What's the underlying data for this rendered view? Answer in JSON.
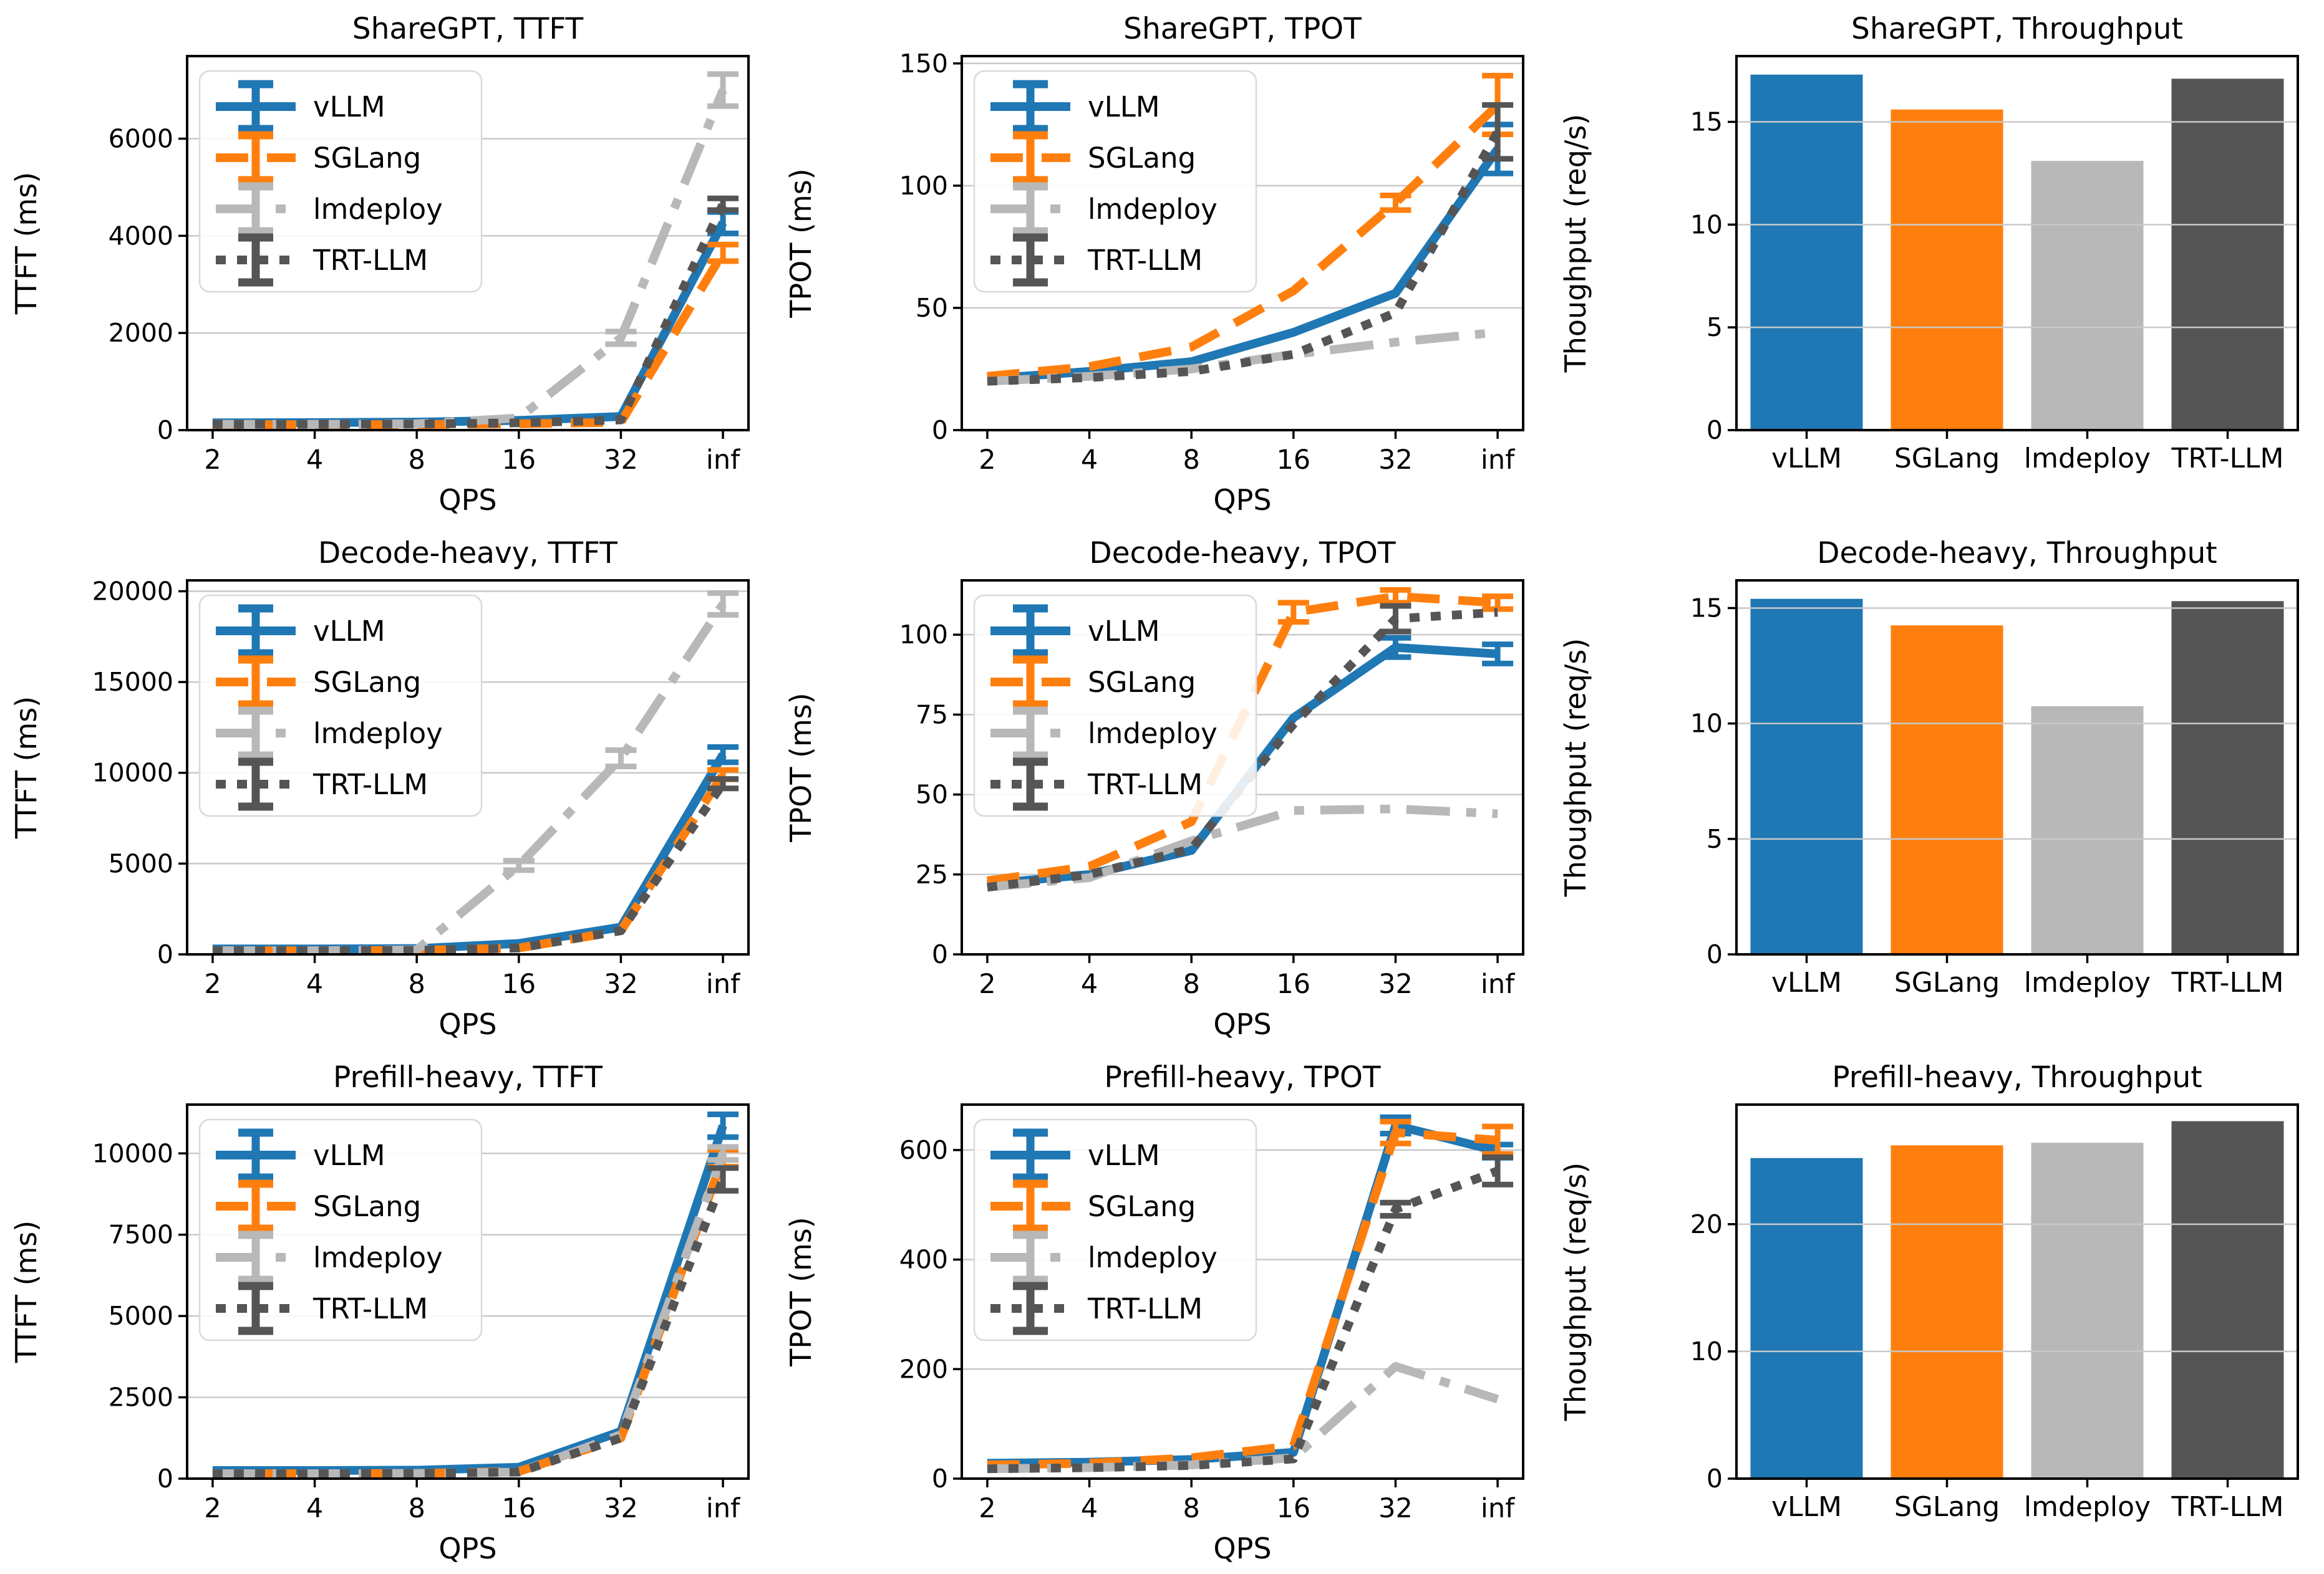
{
  "palette": {
    "vllm": "#1f77b4",
    "sglang": "#ff7f0e",
    "lmdeploy": "#b8b8b8",
    "trtllm": "#555555",
    "grid_line": "#c9c9c9",
    "spine": "#000000",
    "legend_border": "#d9d9d9"
  },
  "frameworks": [
    "vLLM",
    "SGLang",
    "lmdeploy",
    "TRT-LLM"
  ],
  "chart_data": [
    {
      "type": "line",
      "title": "ShareGPT, TTFT",
      "xlabel": "QPS",
      "ylabel": "TTFT (ms)",
      "x_ticklabels": [
        "2",
        "4",
        "8",
        "16",
        "32",
        "inf"
      ],
      "yticks": [
        0,
        2000,
        4000,
        6000
      ],
      "ylim": [
        0,
        7700
      ],
      "grid": true,
      "legend": true,
      "legend_position": "upper-left",
      "series": [
        {
          "name": "vLLM",
          "color": "#1f77b4",
          "style": "solid",
          "values": [
            150,
            155,
            165,
            200,
            280,
            4270
          ],
          "err": [
            0,
            0,
            0,
            0,
            0,
            220
          ]
        },
        {
          "name": "SGLang",
          "color": "#ff7f0e",
          "style": "dashed",
          "values": [
            110,
            110,
            115,
            130,
            160,
            3650
          ],
          "err": [
            0,
            0,
            0,
            0,
            0,
            170
          ]
        },
        {
          "name": "lmdeploy",
          "color": "#b8b8b8",
          "style": "dashdot",
          "values": [
            120,
            120,
            130,
            250,
            1900,
            7000
          ],
          "err": [
            0,
            0,
            0,
            0,
            130,
            330
          ]
        },
        {
          "name": "TRT-LLM",
          "color": "#555555",
          "style": "dotted",
          "values": [
            120,
            120,
            125,
            150,
            210,
            4650
          ],
          "err": [
            0,
            0,
            0,
            0,
            0,
            120
          ]
        }
      ]
    },
    {
      "type": "line",
      "title": "ShareGPT, TPOT",
      "xlabel": "QPS",
      "ylabel": "TPOT (ms)",
      "x_ticklabels": [
        "2",
        "4",
        "8",
        "16",
        "32",
        "inf"
      ],
      "yticks": [
        0,
        50,
        100,
        150
      ],
      "ylim": [
        0,
        153
      ],
      "grid": true,
      "legend": true,
      "legend_position": "upper-left",
      "series": [
        {
          "name": "vLLM",
          "color": "#1f77b4",
          "style": "solid",
          "values": [
            21,
            24,
            28,
            40,
            56,
            115
          ],
          "err": [
            0,
            0,
            0,
            0,
            0,
            10
          ]
        },
        {
          "name": "SGLang",
          "color": "#ff7f0e",
          "style": "dashed",
          "values": [
            22,
            26,
            34,
            57,
            93,
            133
          ],
          "err": [
            0,
            0,
            0,
            0,
            3,
            12
          ]
        },
        {
          "name": "lmdeploy",
          "color": "#b8b8b8",
          "style": "dashdot",
          "values": [
            20,
            22,
            25,
            31,
            36,
            40
          ],
          "err": [
            0,
            0,
            0,
            0,
            0,
            0
          ]
        },
        {
          "name": "TRT-LLM",
          "color": "#555555",
          "style": "dotted",
          "values": [
            20,
            21.5,
            24,
            31,
            48,
            122
          ],
          "err": [
            0,
            0,
            0,
            0,
            0,
            11
          ]
        }
      ]
    },
    {
      "type": "bar",
      "title": "ShareGPT, Throughput",
      "xlabel": "",
      "ylabel": "Thoughput (req/s)",
      "categories": [
        "vLLM",
        "SGLang",
        "lmdeploy",
        "TRT-LLM"
      ],
      "values": [
        17.3,
        15.6,
        13.1,
        17.1
      ],
      "bar_colors": [
        "#1f77b4",
        "#ff7f0e",
        "#b8b8b8",
        "#555555"
      ],
      "yticks": [
        0,
        5,
        10,
        15
      ],
      "ylim": [
        0,
        18.2
      ],
      "grid": true,
      "legend": false
    },
    {
      "type": "line",
      "title": "Decode-heavy, TTFT",
      "xlabel": "QPS",
      "ylabel": "TTFT (ms)",
      "x_ticklabels": [
        "2",
        "4",
        "8",
        "16",
        "32",
        "inf"
      ],
      "yticks": [
        0,
        5000,
        10000,
        15000,
        20000
      ],
      "ylim": [
        0,
        20600
      ],
      "grid": true,
      "legend": true,
      "legend_position": "upper-left",
      "series": [
        {
          "name": "vLLM",
          "color": "#1f77b4",
          "style": "solid",
          "values": [
            300,
            300,
            320,
            600,
            1500,
            11000
          ],
          "err": [
            0,
            0,
            0,
            0,
            0,
            420
          ]
        },
        {
          "name": "SGLang",
          "color": "#ff7f0e",
          "style": "dashed",
          "values": [
            200,
            200,
            220,
            350,
            1300,
            9900
          ],
          "err": [
            0,
            0,
            0,
            0,
            0,
            260
          ]
        },
        {
          "name": "lmdeploy",
          "color": "#b8b8b8",
          "style": "dashdot",
          "values": [
            200,
            200,
            250,
            4900,
            10800,
            19300
          ],
          "err": [
            0,
            0,
            0,
            260,
            450,
            600
          ]
        },
        {
          "name": "TRT-LLM",
          "color": "#555555",
          "style": "dotted",
          "values": [
            200,
            200,
            220,
            350,
            1300,
            9400
          ],
          "err": [
            0,
            0,
            0,
            0,
            0,
            260
          ]
        }
      ]
    },
    {
      "type": "line",
      "title": "Decode-heavy, TPOT",
      "xlabel": "QPS",
      "ylabel": "TPOT (ms)",
      "x_ticklabels": [
        "2",
        "4",
        "8",
        "16",
        "32",
        "inf"
      ],
      "yticks": [
        0,
        25,
        50,
        75,
        100
      ],
      "ylim": [
        0,
        117
      ],
      "grid": true,
      "legend": true,
      "legend_position": "upper-left",
      "series": [
        {
          "name": "vLLM",
          "color": "#1f77b4",
          "style": "solid",
          "values": [
            22,
            25,
            32.5,
            74,
            96,
            94
          ],
          "err": [
            0,
            0,
            0,
            0,
            3,
            3
          ]
        },
        {
          "name": "SGLang",
          "color": "#ff7f0e",
          "style": "dashed",
          "values": [
            23,
            27.5,
            41.5,
            107,
            112,
            110
          ],
          "err": [
            0,
            0,
            0,
            3,
            2,
            2
          ]
        },
        {
          "name": "lmdeploy",
          "color": "#b8b8b8",
          "style": "dashdot",
          "values": [
            21,
            24,
            35.5,
            45,
            45.5,
            44
          ],
          "err": [
            0,
            0,
            0,
            0,
            0,
            0
          ]
        },
        {
          "name": "TRT-LLM",
          "color": "#555555",
          "style": "dotted",
          "values": [
            21,
            25,
            33,
            72,
            105,
            107
          ],
          "err": [
            0,
            0,
            0,
            0,
            4,
            0
          ]
        }
      ]
    },
    {
      "type": "bar",
      "title": "Decode-heavy, Throughput",
      "xlabel": "",
      "ylabel": "Thoughput (req/s)",
      "categories": [
        "vLLM",
        "SGLang",
        "lmdeploy",
        "TRT-LLM"
      ],
      "values": [
        15.4,
        14.25,
        10.75,
        15.3
      ],
      "bar_colors": [
        "#1f77b4",
        "#ff7f0e",
        "#b8b8b8",
        "#555555"
      ],
      "yticks": [
        0,
        5,
        10,
        15
      ],
      "ylim": [
        0,
        16.2
      ],
      "grid": true,
      "legend": false
    },
    {
      "type": "line",
      "title": "Prefill-heavy, TTFT",
      "xlabel": "QPS",
      "ylabel": "TTFT (ms)",
      "x_ticklabels": [
        "2",
        "4",
        "8",
        "16",
        "32",
        "inf"
      ],
      "yticks": [
        0,
        2500,
        5000,
        7500,
        10000
      ],
      "ylim": [
        0,
        11500
      ],
      "grid": true,
      "legend": true,
      "legend_position": "upper-left",
      "series": [
        {
          "name": "vLLM",
          "color": "#1f77b4",
          "style": "solid",
          "values": [
            250,
            250,
            260,
            350,
            1450,
            10850
          ],
          "err": [
            0,
            0,
            0,
            0,
            0,
            350
          ]
        },
        {
          "name": "SGLang",
          "color": "#ff7f0e",
          "style": "dashed",
          "values": [
            150,
            150,
            160,
            220,
            1250,
            9850
          ],
          "err": [
            0,
            0,
            0,
            0,
            0,
            260
          ]
        },
        {
          "name": "lmdeploy",
          "color": "#b8b8b8",
          "style": "dashdot",
          "values": [
            150,
            150,
            160,
            200,
            1350,
            10000
          ],
          "err": [
            0,
            0,
            0,
            0,
            0,
            200
          ]
        },
        {
          "name": "TRT-LLM",
          "color": "#555555",
          "style": "dotted",
          "values": [
            150,
            150,
            160,
            200,
            1250,
            9200
          ],
          "err": [
            0,
            0,
            0,
            0,
            0,
            350
          ]
        }
      ]
    },
    {
      "type": "line",
      "title": "Prefill-heavy, TPOT",
      "xlabel": "QPS",
      "ylabel": "TPOT (ms)",
      "x_ticklabels": [
        "2",
        "4",
        "8",
        "16",
        "32",
        "inf"
      ],
      "yticks": [
        0,
        200,
        400,
        600
      ],
      "ylim": [
        0,
        683
      ],
      "grid": true,
      "legend": true,
      "legend_position": "upper-left",
      "series": [
        {
          "name": "vLLM",
          "color": "#1f77b4",
          "style": "solid",
          "values": [
            28,
            30,
            35,
            48,
            645,
            598
          ],
          "err": [
            0,
            0,
            0,
            0,
            15,
            12
          ]
        },
        {
          "name": "SGLang",
          "color": "#ff7f0e",
          "style": "dashed",
          "values": [
            25,
            28,
            38,
            60,
            632,
            618
          ],
          "err": [
            0,
            0,
            0,
            0,
            20,
            25
          ]
        },
        {
          "name": "lmdeploy",
          "color": "#b8b8b8",
          "style": "dashdot",
          "values": [
            18,
            20,
            25,
            38,
            205,
            145
          ],
          "err": [
            0,
            0,
            0,
            0,
            0,
            0
          ]
        },
        {
          "name": "TRT-LLM",
          "color": "#555555",
          "style": "dotted",
          "values": [
            18,
            20,
            24,
            36,
            492,
            562
          ],
          "err": [
            0,
            0,
            0,
            0,
            12,
            25
          ]
        }
      ]
    },
    {
      "type": "bar",
      "title": "Prefill-heavy, Throughput",
      "xlabel": "",
      "ylabel": "Thoughput (req/s)",
      "categories": [
        "vLLM",
        "SGLang",
        "lmdeploy",
        "TRT-LLM"
      ],
      "values": [
        25.2,
        26.2,
        26.4,
        28.1
      ],
      "bar_colors": [
        "#1f77b4",
        "#ff7f0e",
        "#b8b8b8",
        "#555555"
      ],
      "yticks": [
        0,
        10,
        20
      ],
      "ylim": [
        0,
        29.4
      ],
      "grid": true,
      "legend": false
    }
  ]
}
